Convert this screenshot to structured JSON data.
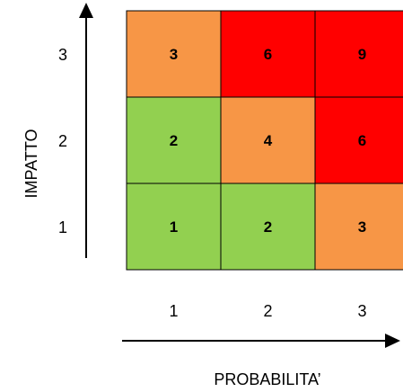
{
  "matrix": {
    "colors": {
      "low": "#92D050",
      "medium": "#F79646",
      "high": "#FF0000",
      "border": "#000000"
    },
    "rows": [
      {
        "impact": "3",
        "cells": [
          {
            "value": "3",
            "level": "medium"
          },
          {
            "value": "6",
            "level": "high"
          },
          {
            "value": "9",
            "level": "high"
          }
        ]
      },
      {
        "impact": "2",
        "cells": [
          {
            "value": "2",
            "level": "low"
          },
          {
            "value": "4",
            "level": "medium"
          },
          {
            "value": "6",
            "level": "high"
          }
        ]
      },
      {
        "impact": "1",
        "cells": [
          {
            "value": "1",
            "level": "low"
          },
          {
            "value": "2",
            "level": "low"
          },
          {
            "value": "3",
            "level": "medium"
          }
        ]
      }
    ],
    "probability_ticks": [
      "1",
      "2",
      "3"
    ]
  },
  "axes": {
    "x_title": "PROBABILITA’",
    "y_title": "IMPATTO"
  }
}
